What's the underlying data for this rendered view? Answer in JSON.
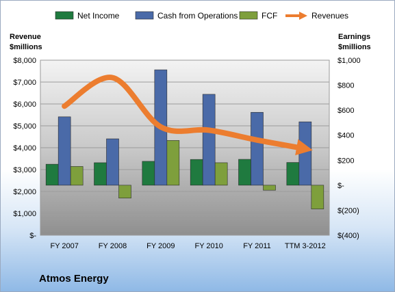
{
  "chart_data": {
    "type": "bar",
    "title": "Atmos Energy",
    "categories": [
      "FY 2007",
      "FY 2008",
      "FY 2009",
      "FY 2010",
      "FY 2011",
      "TTM 3-2012"
    ],
    "series": [
      {
        "name": "Net Income",
        "axis": "right",
        "color": "#1f7a3f",
        "values": [
          168,
          180,
          191,
          206,
          207,
          182
        ]
      },
      {
        "name": "Cash from Operations",
        "axis": "right",
        "color": "#4a6aa8",
        "values": [
          547,
          371,
          923,
          727,
          583,
          507
        ]
      },
      {
        "name": "FCF",
        "axis": "right",
        "color": "#7e9f3c",
        "values": [
          150,
          -103,
          358,
          180,
          -40,
          -190
        ]
      },
      {
        "name": "Revenues",
        "axis": "left",
        "type": "line",
        "color": "#ec7d2f",
        "values": [
          5900,
          7200,
          4950,
          4800,
          4350,
          3950
        ]
      }
    ],
    "y_left": {
      "label_lines": [
        "Revenue",
        "$millions"
      ],
      "range": [
        0,
        8000
      ],
      "ticks": [
        "$8,000",
        "$7,000",
        "$6,000",
        "$5,000",
        "$4,000",
        "$3,000",
        "$2,000",
        "$1,000",
        "$-"
      ]
    },
    "y_right": {
      "label_lines": [
        "Earnings",
        "$millions"
      ],
      "range": [
        -400,
        1000
      ],
      "ticks": [
        "$1,000",
        "$800",
        "$600",
        "$400",
        "$200",
        "$-",
        "$(200)",
        "$(400)"
      ]
    },
    "grid": true,
    "legend_position": "top"
  },
  "company": "Atmos Energy"
}
